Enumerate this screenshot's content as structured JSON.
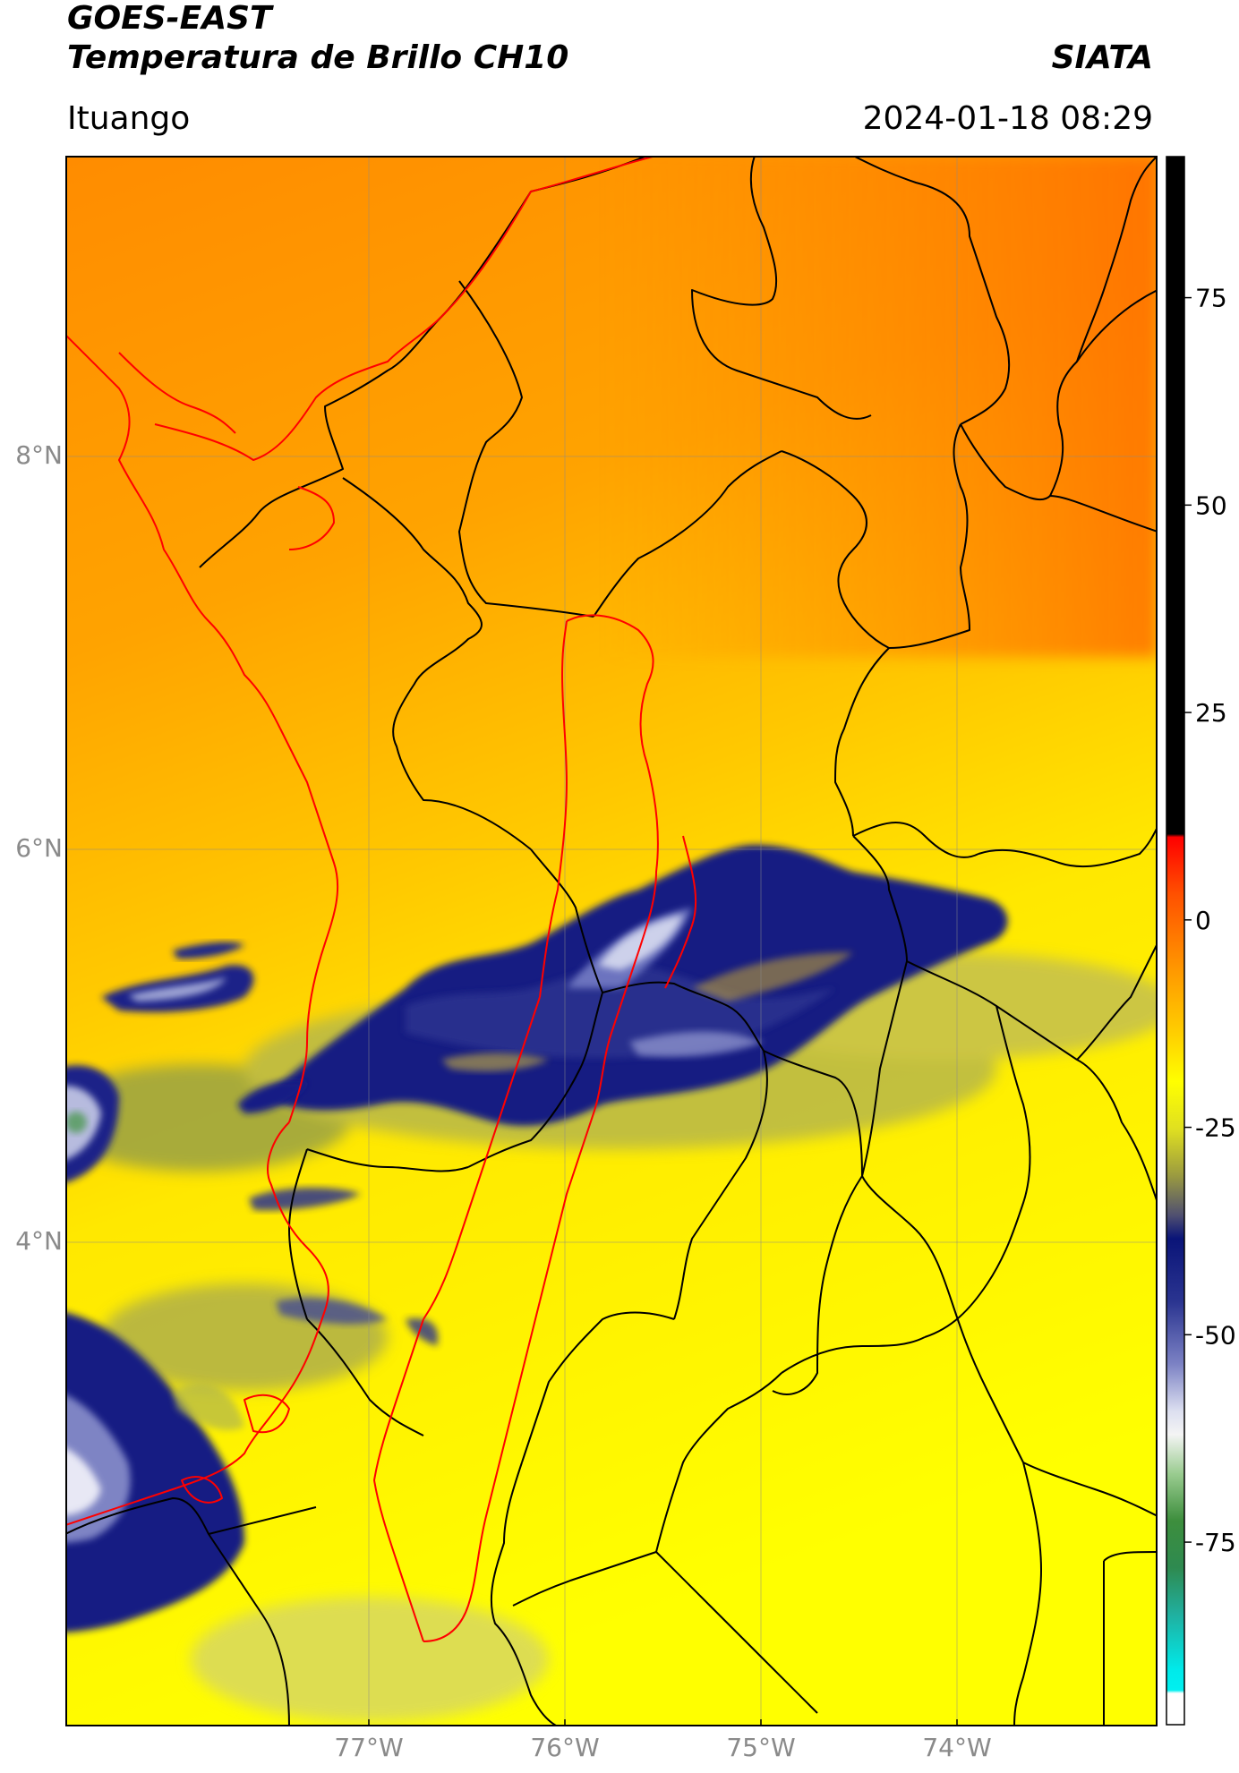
{
  "header": {
    "satellite": "GOES-EAST",
    "product": "Temperatura de Brillo CH10",
    "region": "Ituango",
    "agency": "SIATA",
    "timestamp": "2024-01-18 08:29"
  },
  "map": {
    "lon_labels": [
      "77°W",
      "76°W",
      "75°W",
      "74°W"
    ],
    "lat_labels": [
      "8°N",
      "6°N",
      "4°N"
    ],
    "colors": {
      "warm_orange": "#ff7a00",
      "orange": "#ffa500",
      "yellow": "#ffff00",
      "olive": "#8f9a3c",
      "navy": "#101a80",
      "lavender": "#b8bde0",
      "white": "#ffffff",
      "green": "#3e8f3e",
      "border_black": "#000000",
      "border_red": "#ff0000"
    }
  },
  "colorbar": {
    "ticks": [
      "75",
      "50",
      "25",
      "0",
      "-25",
      "-50",
      "-75"
    ],
    "tick_values": [
      75,
      50,
      25,
      0,
      -25,
      -50,
      -75
    ],
    "range": [
      -97,
      92
    ]
  }
}
